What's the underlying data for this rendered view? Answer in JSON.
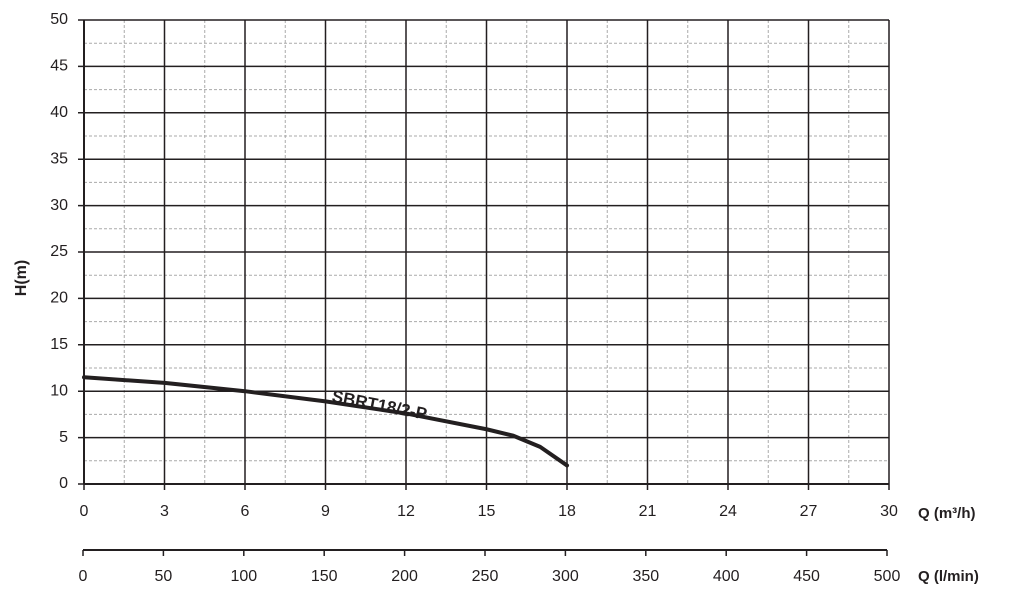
{
  "chart_data": {
    "type": "line",
    "x": [
      0,
      3,
      6,
      9,
      12,
      15,
      16,
      17,
      18
    ],
    "series": [
      {
        "name": "SBRT18/2-P",
        "color": "#231f20",
        "values": [
          11.5,
          10.9,
          10,
          8.9,
          7.6,
          5.9,
          5.2,
          4.0,
          2.0
        ]
      }
    ],
    "xlim": [
      0,
      30
    ],
    "xticks": [
      0,
      3,
      6,
      9,
      12,
      15,
      18,
      21,
      24,
      27,
      30
    ],
    "ylim": [
      0,
      50
    ],
    "yticks": [
      0,
      5,
      10,
      15,
      20,
      25,
      30,
      35,
      40,
      45,
      50
    ],
    "xminorticks": [
      1.5,
      4.5,
      7.5,
      10.5,
      13.5,
      16.5,
      19.5,
      22.5,
      25.5,
      28.5
    ],
    "yminorticks": [
      2.5,
      7.5,
      12.5,
      17.5,
      22.5,
      27.5,
      32.5,
      37.5,
      42.5,
      47.5
    ],
    "xlabel": "Q  (m³/h)",
    "ylabel": "H(m)",
    "x2lim": [
      0,
      500
    ],
    "x2ticks": [
      0,
      50,
      100,
      150,
      200,
      250,
      300,
      350,
      400,
      450,
      500
    ],
    "x2label": "Q (l/min)",
    "grid": true
  }
}
